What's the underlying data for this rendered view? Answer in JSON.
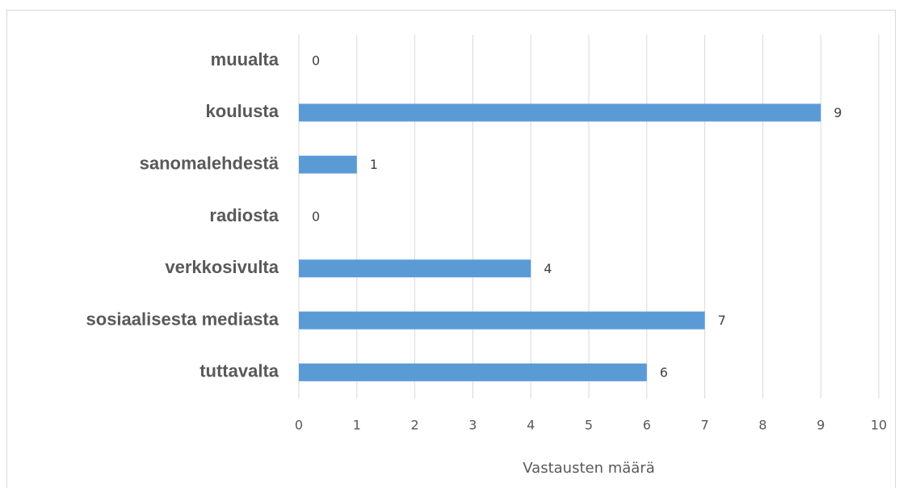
{
  "chart_data": {
    "type": "bar",
    "orientation": "horizontal",
    "categories": [
      "muualta",
      "koulusta",
      "sanomalehdestä",
      "radiosta",
      "verkkosivulta",
      "sosiaalisesta mediasta",
      "tuttavalta"
    ],
    "values": [
      0,
      9,
      1,
      0,
      4,
      7,
      6
    ],
    "color": "#5b9bd5",
    "xlabel": "Vastausten määrä",
    "xlim": [
      0,
      10
    ],
    "xticks": [
      0,
      1,
      2,
      3,
      4,
      5,
      6,
      7,
      8,
      9,
      10
    ],
    "grid": true
  }
}
